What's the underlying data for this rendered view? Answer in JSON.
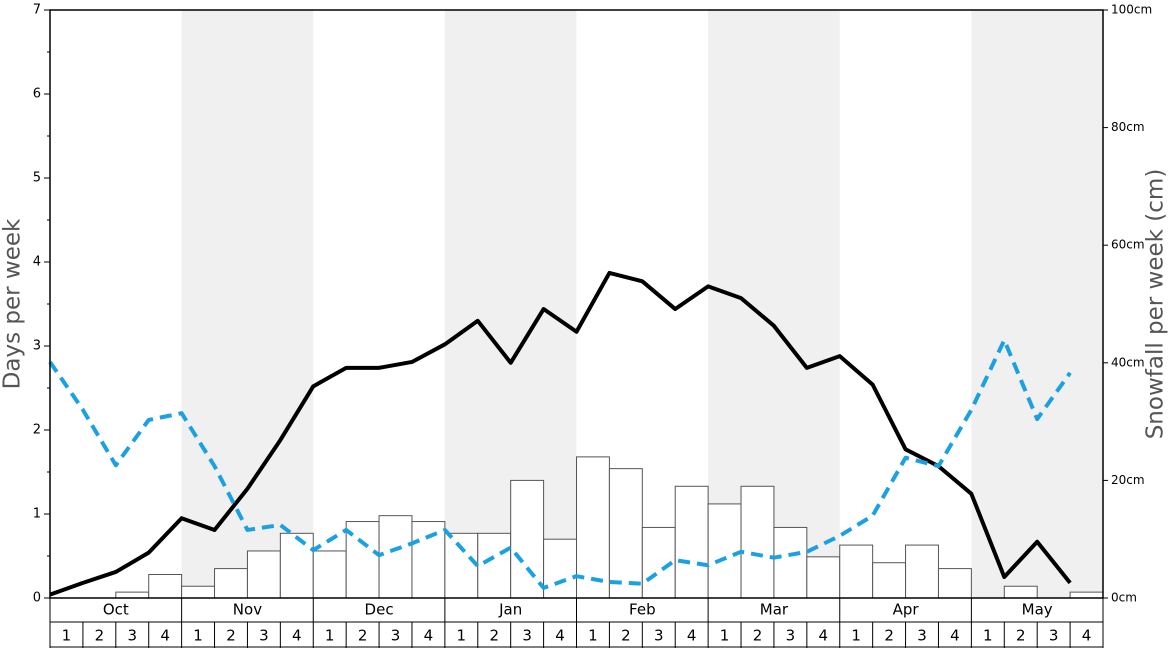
{
  "chart_data": {
    "type": "combo",
    "y_label": "Days per week",
    "y2_label": "Snowfall per week (cm)",
    "months": [
      "Oct",
      "Nov",
      "Dec",
      "Jan",
      "Feb",
      "Mar",
      "Apr",
      "May"
    ],
    "categories": [
      "1",
      "2",
      "3",
      "4",
      "1",
      "2",
      "3",
      "4",
      "1",
      "2",
      "3",
      "4",
      "1",
      "2",
      "3",
      "4",
      "1",
      "2",
      "3",
      "4",
      "1",
      "2",
      "3",
      "4",
      "1",
      "2",
      "3",
      "4",
      "1",
      "2",
      "3",
      "4"
    ],
    "ylim": [
      0,
      7
    ],
    "yticks": [
      0,
      1,
      2,
      3,
      4,
      5,
      6,
      7
    ],
    "y2lim": [
      0,
      100
    ],
    "y2ticks": [
      {
        "value": 0,
        "label": "0cm"
      },
      {
        "value": 20,
        "label": "20cm"
      },
      {
        "value": 40,
        "label": "40cm"
      },
      {
        "value": 60,
        "label": "60cm"
      },
      {
        "value": 80,
        "label": "80cm"
      },
      {
        "value": 100,
        "label": "100cm"
      }
    ],
    "series": [
      {
        "type": "bar",
        "axis": "y2",
        "color": "#ffffff",
        "values": [
          0,
          0,
          1,
          4,
          2,
          5,
          8,
          11,
          8,
          13,
          14,
          13,
          11,
          11,
          20,
          10,
          24,
          22,
          12,
          19,
          16,
          19,
          12,
          7,
          9,
          6,
          9,
          5,
          0,
          2,
          0,
          1
        ]
      },
      {
        "type": "line",
        "color": "#000000",
        "dashed": false,
        "values": [
          0.04,
          0.18,
          0.31,
          0.54,
          0.95,
          0.81,
          1.3,
          1.88,
          2.52,
          2.74,
          2.74,
          2.81,
          3.02,
          3.3,
          2.8,
          3.44,
          3.17,
          3.87,
          3.77,
          3.44,
          3.71,
          3.57,
          3.24,
          2.74,
          2.88,
          2.54,
          1.77,
          1.57,
          1.24,
          0.25,
          0.67,
          0.18
        ]
      },
      {
        "type": "line",
        "color": "#1ba1e2",
        "dashed": true,
        "values": [
          2.81,
          2.24,
          1.58,
          2.12,
          2.2,
          1.57,
          0.81,
          0.87,
          0.57,
          0.81,
          0.51,
          0.65,
          0.81,
          0.38,
          0.6,
          0.12,
          0.26,
          0.19,
          0.17,
          0.45,
          0.39,
          0.55,
          0.48,
          0.55,
          0.74,
          0.98,
          1.67,
          1.57,
          2.24,
          3.07,
          2.13,
          2.68
        ]
      }
    ]
  }
}
